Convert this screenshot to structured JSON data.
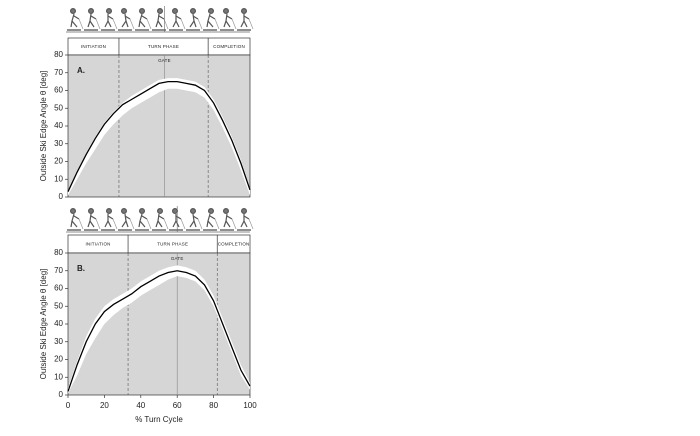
{
  "chart_data": [
    {
      "type": "line",
      "panel_label": "A.",
      "ylabel": "Outside Ski Edge Angle θ [deg]",
      "phase_labels": [
        "INITIATION",
        "TURN PHASE",
        "COMPLETION"
      ],
      "phase_bounds": [
        28,
        77
      ],
      "gate": 53,
      "gate_label": "GATE",
      "x": [
        0,
        5,
        10,
        15,
        20,
        25,
        30,
        35,
        40,
        45,
        50,
        55,
        60,
        65,
        70,
        75,
        80,
        85,
        90,
        95,
        100
      ],
      "values": [
        3,
        14,
        24,
        33,
        41,
        47,
        52,
        55,
        58,
        61,
        64,
        65,
        65,
        64,
        63,
        60,
        53,
        43,
        32,
        19,
        4
      ],
      "upper": [
        4,
        15,
        25,
        34,
        42,
        48,
        53,
        57,
        60,
        63,
        66,
        67,
        67,
        66,
        65,
        62,
        55,
        45,
        34,
        21,
        5
      ],
      "lower": [
        1,
        10,
        19,
        27,
        35,
        41,
        46,
        50,
        53,
        56,
        59,
        61,
        61,
        60,
        59,
        56,
        49,
        39,
        28,
        15,
        1
      ],
      "line_color": "#000000",
      "band_color": "#ffffff",
      "background": "#d6d6d6",
      "xlim": [
        0,
        100
      ],
      "ylim": [
        0,
        80
      ],
      "yticks": [
        0,
        10,
        20,
        30,
        40,
        50,
        60,
        70,
        80
      ]
    },
    {
      "type": "line",
      "panel_label": "B.",
      "ylabel": "Outside Ski Edge Angle θ [deg]",
      "xlabel": "% Turn Cycle",
      "phase_labels": [
        "INITIATION",
        "TURN PHASE",
        "COMPLETION"
      ],
      "phase_bounds": [
        33,
        82
      ],
      "gate": 60,
      "gate_label": "GATE",
      "x": [
        0,
        5,
        10,
        15,
        20,
        25,
        30,
        35,
        40,
        45,
        50,
        55,
        60,
        65,
        70,
        75,
        80,
        85,
        90,
        95,
        100
      ],
      "values": [
        2,
        17,
        30,
        40,
        47,
        51,
        54,
        57,
        61,
        64,
        67,
        69,
        70,
        69,
        67,
        62,
        53,
        40,
        27,
        14,
        5
      ],
      "upper": [
        4,
        19,
        33,
        43,
        50,
        54,
        57,
        60,
        64,
        67,
        70,
        72,
        73,
        72,
        70,
        65,
        56,
        43,
        30,
        17,
        7
      ],
      "lower": [
        1,
        11,
        23,
        32,
        40,
        45,
        49,
        52,
        56,
        59,
        62,
        65,
        67,
        66,
        64,
        59,
        50,
        37,
        24,
        11,
        3
      ],
      "line_color": "#000000",
      "band_color": "#ffffff",
      "background": "#d6d6d6",
      "xlim": [
        0,
        100
      ],
      "ylim": [
        0,
        80
      ],
      "yticks": [
        0,
        10,
        20,
        30,
        40,
        50,
        60,
        70,
        80
      ],
      "xticks": [
        0,
        20,
        40,
        60,
        80,
        100
      ]
    }
  ]
}
